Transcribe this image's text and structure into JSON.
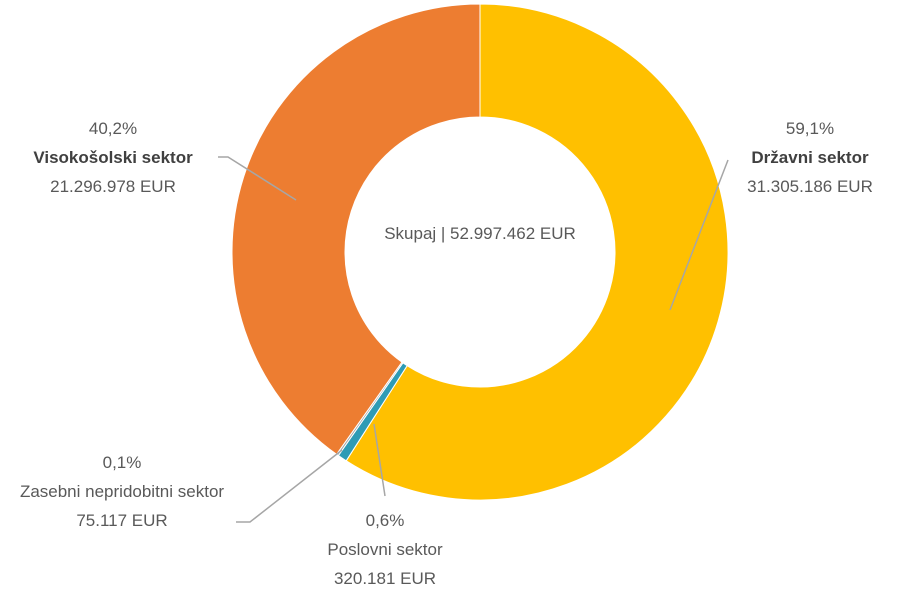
{
  "chart_data": {
    "type": "donut",
    "center_label": "Skupaj | 52.997.462 EUR",
    "categories": [
      "Državni sektor",
      "Poslovni sektor",
      "Zasebni nepridobitni sektor",
      "Visokošolski sektor"
    ],
    "values": [
      31305186,
      320181,
      75117,
      21296978
    ],
    "value_labels": [
      "31.305.186 EUR",
      "320.181 EUR",
      "75.117 EUR",
      "21.296.978 EUR"
    ],
    "percentages": [
      59.1,
      0.6,
      0.1,
      40.2
    ],
    "percentage_labels": [
      "59,1%",
      "0,6%",
      "0,1%",
      "40,2%"
    ],
    "colors": [
      "#FFC000",
      "#2E9BB5",
      "#A5A5A5",
      "#ED7D31"
    ]
  }
}
